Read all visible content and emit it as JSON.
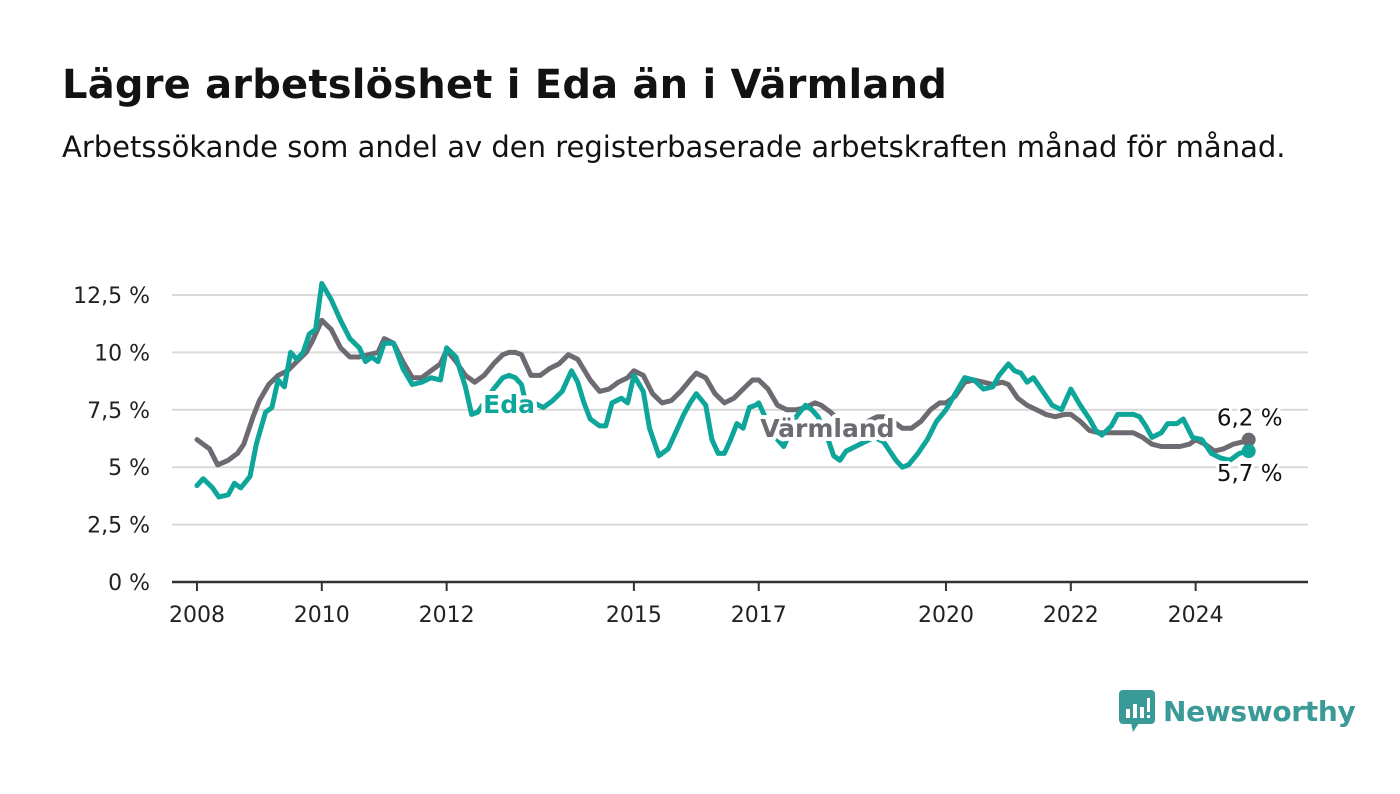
{
  "title": "Lägre arbetslöshet i Eda än i Värmland",
  "subtitle": "Arbetssökande som andel av den registerbaserade arbetskraften månad för månad.",
  "brand": {
    "name": "Newsworthy",
    "icon": "newsworthy-logo-icon"
  },
  "colors": {
    "eda": "#0ea59a",
    "varmland": "#6e6a71",
    "grid": "#d9d9d9",
    "axis": "#333333",
    "brand": "#3a9a97"
  },
  "chart_data": {
    "type": "line",
    "x_unit": "year",
    "xlim": [
      2007.6,
      2025.8
    ],
    "ylim": [
      0,
      12.5
    ],
    "yticks": [
      {
        "value": 0,
        "label": "0 %"
      },
      {
        "value": 2.5,
        "label": "2,5 %"
      },
      {
        "value": 5,
        "label": "5 %"
      },
      {
        "value": 7.5,
        "label": "7,5 %"
      },
      {
        "value": 10,
        "label": "10 %"
      },
      {
        "value": 12.5,
        "label": "12,5 %"
      }
    ],
    "xticks": [
      {
        "value": 2008,
        "label": "2008"
      },
      {
        "value": 2010,
        "label": "2010"
      },
      {
        "value": 2012,
        "label": "2012"
      },
      {
        "value": 2015,
        "label": "2015"
      },
      {
        "value": 2017,
        "label": "2017"
      },
      {
        "value": 2020,
        "label": "2020"
      },
      {
        "value": 2022,
        "label": "2022"
      },
      {
        "value": 2024,
        "label": "2024"
      }
    ],
    "grid": true,
    "legend": "inline labels",
    "series": [
      {
        "name": "Värmland",
        "key": "varmland",
        "end_label": "6,2 %",
        "points": [
          [
            2008.0,
            6.2
          ],
          [
            2008.1,
            6.0
          ],
          [
            2008.2,
            5.8
          ],
          [
            2008.33,
            5.1
          ],
          [
            2008.5,
            5.3
          ],
          [
            2008.65,
            5.6
          ],
          [
            2008.75,
            6.0
          ],
          [
            2008.9,
            7.2
          ],
          [
            2009.0,
            7.9
          ],
          [
            2009.15,
            8.6
          ],
          [
            2009.3,
            9.0
          ],
          [
            2009.45,
            9.2
          ],
          [
            2009.6,
            9.6
          ],
          [
            2009.75,
            10.0
          ],
          [
            2009.85,
            10.5
          ],
          [
            2010.0,
            11.4
          ],
          [
            2010.15,
            11.0
          ],
          [
            2010.3,
            10.2
          ],
          [
            2010.45,
            9.8
          ],
          [
            2010.6,
            9.8
          ],
          [
            2010.75,
            9.9
          ],
          [
            2010.9,
            10.0
          ],
          [
            2011.0,
            10.6
          ],
          [
            2011.15,
            10.4
          ],
          [
            2011.3,
            9.6
          ],
          [
            2011.45,
            8.9
          ],
          [
            2011.6,
            8.9
          ],
          [
            2011.75,
            9.2
          ],
          [
            2011.9,
            9.5
          ],
          [
            2012.0,
            10.1
          ],
          [
            2012.15,
            9.6
          ],
          [
            2012.3,
            9.0
          ],
          [
            2012.45,
            8.7
          ],
          [
            2012.6,
            9.0
          ],
          [
            2012.75,
            9.5
          ],
          [
            2012.9,
            9.9
          ],
          [
            2013.0,
            10.0
          ],
          [
            2013.1,
            10.0
          ],
          [
            2013.2,
            9.9
          ],
          [
            2013.35,
            9.0
          ],
          [
            2013.5,
            9.0
          ],
          [
            2013.65,
            9.3
          ],
          [
            2013.8,
            9.5
          ],
          [
            2013.95,
            9.9
          ],
          [
            2014.1,
            9.7
          ],
          [
            2014.3,
            8.8
          ],
          [
            2014.45,
            8.3
          ],
          [
            2014.6,
            8.4
          ],
          [
            2014.75,
            8.7
          ],
          [
            2014.9,
            8.9
          ],
          [
            2015.0,
            9.2
          ],
          [
            2015.15,
            9.0
          ],
          [
            2015.3,
            8.2
          ],
          [
            2015.45,
            7.8
          ],
          [
            2015.6,
            7.9
          ],
          [
            2015.75,
            8.3
          ],
          [
            2015.9,
            8.8
          ],
          [
            2016.0,
            9.1
          ],
          [
            2016.15,
            8.9
          ],
          [
            2016.3,
            8.2
          ],
          [
            2016.45,
            7.8
          ],
          [
            2016.6,
            8.0
          ],
          [
            2016.75,
            8.4
          ],
          [
            2016.9,
            8.8
          ],
          [
            2017.0,
            8.8
          ],
          [
            2017.15,
            8.4
          ],
          [
            2017.3,
            7.7
          ],
          [
            2017.45,
            7.5
          ],
          [
            2017.6,
            7.5
          ],
          [
            2017.75,
            7.6
          ],
          [
            2017.9,
            7.8
          ],
          [
            2018.0,
            7.7
          ],
          [
            2018.15,
            7.4
          ],
          [
            2018.3,
            7.0
          ],
          [
            2018.45,
            6.7
          ],
          [
            2018.6,
            6.8
          ],
          [
            2018.75,
            7.0
          ],
          [
            2018.9,
            7.2
          ],
          [
            2019.0,
            7.2
          ],
          [
            2019.15,
            7.0
          ],
          [
            2019.3,
            6.7
          ],
          [
            2019.45,
            6.7
          ],
          [
            2019.6,
            7.0
          ],
          [
            2019.75,
            7.5
          ],
          [
            2019.9,
            7.8
          ],
          [
            2020.0,
            7.8
          ],
          [
            2020.15,
            8.1
          ],
          [
            2020.3,
            8.7
          ],
          [
            2020.45,
            8.8
          ],
          [
            2020.6,
            8.7
          ],
          [
            2020.75,
            8.6
          ],
          [
            2020.9,
            8.7
          ],
          [
            2021.0,
            8.6
          ],
          [
            2021.15,
            8.0
          ],
          [
            2021.3,
            7.7
          ],
          [
            2021.45,
            7.5
          ],
          [
            2021.6,
            7.3
          ],
          [
            2021.75,
            7.2
          ],
          [
            2021.9,
            7.3
          ],
          [
            2022.0,
            7.3
          ],
          [
            2022.15,
            7.0
          ],
          [
            2022.3,
            6.6
          ],
          [
            2022.45,
            6.5
          ],
          [
            2022.6,
            6.5
          ],
          [
            2022.75,
            6.5
          ],
          [
            2022.9,
            6.5
          ],
          [
            2023.0,
            6.5
          ],
          [
            2023.15,
            6.3
          ],
          [
            2023.3,
            6.0
          ],
          [
            2023.45,
            5.9
          ],
          [
            2023.6,
            5.9
          ],
          [
            2023.75,
            5.9
          ],
          [
            2023.9,
            6.0
          ],
          [
            2024.0,
            6.2
          ],
          [
            2024.15,
            6.0
          ],
          [
            2024.3,
            5.7
          ],
          [
            2024.45,
            5.8
          ],
          [
            2024.6,
            6.0
          ],
          [
            2024.75,
            6.1
          ],
          [
            2024.85,
            6.2
          ]
        ]
      },
      {
        "name": "Eda",
        "key": "eda",
        "end_label": "5,7 %",
        "points": [
          [
            2008.0,
            4.2
          ],
          [
            2008.1,
            4.5
          ],
          [
            2008.25,
            4.1
          ],
          [
            2008.35,
            3.7
          ],
          [
            2008.5,
            3.8
          ],
          [
            2008.6,
            4.3
          ],
          [
            2008.7,
            4.1
          ],
          [
            2008.85,
            4.6
          ],
          [
            2008.95,
            6.0
          ],
          [
            2009.1,
            7.4
          ],
          [
            2009.2,
            7.6
          ],
          [
            2009.3,
            8.8
          ],
          [
            2009.4,
            8.5
          ],
          [
            2009.5,
            10.0
          ],
          [
            2009.6,
            9.7
          ],
          [
            2009.7,
            10.0
          ],
          [
            2009.8,
            10.8
          ],
          [
            2009.9,
            11.0
          ],
          [
            2010.0,
            13.0
          ],
          [
            2010.15,
            12.3
          ],
          [
            2010.3,
            11.4
          ],
          [
            2010.45,
            10.6
          ],
          [
            2010.6,
            10.2
          ],
          [
            2010.7,
            9.6
          ],
          [
            2010.8,
            9.8
          ],
          [
            2010.9,
            9.6
          ],
          [
            2011.0,
            10.4
          ],
          [
            2011.15,
            10.4
          ],
          [
            2011.3,
            9.3
          ],
          [
            2011.45,
            8.6
          ],
          [
            2011.6,
            8.7
          ],
          [
            2011.75,
            8.9
          ],
          [
            2011.9,
            8.8
          ],
          [
            2012.0,
            10.2
          ],
          [
            2012.15,
            9.8
          ],
          [
            2012.3,
            8.5
          ],
          [
            2012.4,
            7.3
          ],
          [
            2012.5,
            7.4
          ],
          [
            2012.6,
            7.8
          ],
          [
            2012.75,
            8.4
          ],
          [
            2012.9,
            8.9
          ],
          [
            2013.0,
            9.0
          ],
          [
            2013.1,
            8.9
          ],
          [
            2013.2,
            8.6
          ],
          [
            2013.3,
            7.4
          ],
          [
            2013.4,
            7.8
          ],
          [
            2013.55,
            7.6
          ],
          [
            2013.7,
            7.9
          ],
          [
            2013.85,
            8.3
          ],
          [
            2014.0,
            9.2
          ],
          [
            2014.1,
            8.7
          ],
          [
            2014.2,
            7.8
          ],
          [
            2014.3,
            7.1
          ],
          [
            2014.45,
            6.8
          ],
          [
            2014.55,
            6.8
          ],
          [
            2014.65,
            7.8
          ],
          [
            2014.8,
            8.0
          ],
          [
            2014.9,
            7.8
          ],
          [
            2015.0,
            9.0
          ],
          [
            2015.15,
            8.3
          ],
          [
            2015.25,
            6.7
          ],
          [
            2015.4,
            5.5
          ],
          [
            2015.55,
            5.8
          ],
          [
            2015.65,
            6.4
          ],
          [
            2015.8,
            7.3
          ],
          [
            2015.9,
            7.8
          ],
          [
            2016.0,
            8.2
          ],
          [
            2016.15,
            7.7
          ],
          [
            2016.25,
            6.2
          ],
          [
            2016.35,
            5.6
          ],
          [
            2016.45,
            5.6
          ],
          [
            2016.55,
            6.2
          ],
          [
            2016.65,
            6.9
          ],
          [
            2016.75,
            6.7
          ],
          [
            2016.85,
            7.6
          ],
          [
            2016.95,
            7.7
          ],
          [
            2017.0,
            7.8
          ],
          [
            2017.15,
            6.9
          ],
          [
            2017.3,
            6.2
          ],
          [
            2017.4,
            5.9
          ],
          [
            2017.5,
            6.5
          ],
          [
            2017.6,
            7.2
          ],
          [
            2017.75,
            7.7
          ],
          [
            2017.85,
            7.5
          ],
          [
            2017.95,
            7.2
          ],
          [
            2018.1,
            6.3
          ],
          [
            2018.2,
            5.5
          ],
          [
            2018.3,
            5.3
          ],
          [
            2018.4,
            5.7
          ],
          [
            2018.55,
            5.9
          ],
          [
            2018.7,
            6.1
          ],
          [
            2018.85,
            6.3
          ],
          [
            2019.0,
            6.1
          ],
          [
            2019.1,
            5.7
          ],
          [
            2019.2,
            5.3
          ],
          [
            2019.3,
            5.0
          ],
          [
            2019.4,
            5.1
          ],
          [
            2019.55,
            5.6
          ],
          [
            2019.7,
            6.2
          ],
          [
            2019.85,
            7.0
          ],
          [
            2020.0,
            7.5
          ],
          [
            2020.15,
            8.2
          ],
          [
            2020.3,
            8.9
          ],
          [
            2020.45,
            8.8
          ],
          [
            2020.6,
            8.4
          ],
          [
            2020.75,
            8.5
          ],
          [
            2020.85,
            9.0
          ],
          [
            2021.0,
            9.5
          ],
          [
            2021.1,
            9.2
          ],
          [
            2021.2,
            9.1
          ],
          [
            2021.3,
            8.7
          ],
          [
            2021.4,
            8.9
          ],
          [
            2021.55,
            8.3
          ],
          [
            2021.7,
            7.7
          ],
          [
            2021.85,
            7.5
          ],
          [
            2022.0,
            8.4
          ],
          [
            2022.15,
            7.7
          ],
          [
            2022.3,
            7.1
          ],
          [
            2022.4,
            6.6
          ],
          [
            2022.5,
            6.4
          ],
          [
            2022.65,
            6.8
          ],
          [
            2022.75,
            7.3
          ],
          [
            2022.9,
            7.3
          ],
          [
            2023.0,
            7.3
          ],
          [
            2023.1,
            7.2
          ],
          [
            2023.2,
            6.8
          ],
          [
            2023.3,
            6.3
          ],
          [
            2023.45,
            6.5
          ],
          [
            2023.55,
            6.9
          ],
          [
            2023.7,
            6.9
          ],
          [
            2023.8,
            7.1
          ],
          [
            2023.95,
            6.3
          ],
          [
            2024.1,
            6.2
          ],
          [
            2024.25,
            5.6
          ],
          [
            2024.4,
            5.4
          ],
          [
            2024.55,
            5.3
          ],
          [
            2024.7,
            5.6
          ],
          [
            2024.85,
            5.7
          ]
        ]
      }
    ],
    "inline_labels": [
      {
        "series": "eda",
        "text": "Eda",
        "x": 2013.0,
        "y": 7.75
      },
      {
        "series": "varmland",
        "text": "Värmland",
        "x": 2018.1,
        "y": 6.7
      }
    ]
  }
}
